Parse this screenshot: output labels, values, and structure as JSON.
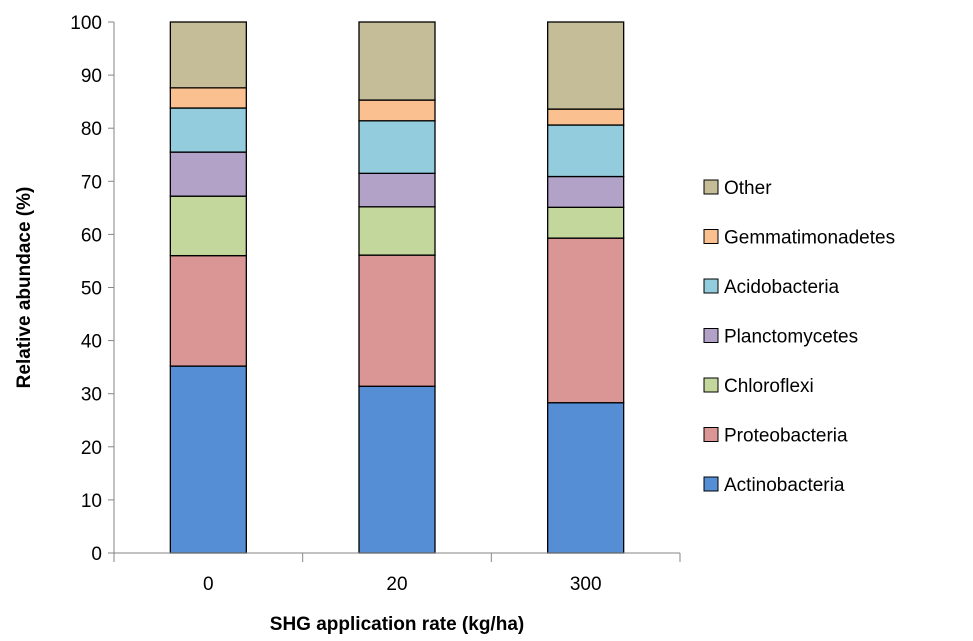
{
  "chart_data": {
    "type": "bar",
    "stacked": true,
    "categories": [
      "0",
      "20",
      "300"
    ],
    "series": [
      {
        "name": "Actinobacteria",
        "color": "#558ED5",
        "values": [
          35.2,
          31.4,
          28.3
        ]
      },
      {
        "name": "Proteobacteria",
        "color": "#D99694",
        "values": [
          20.8,
          24.7,
          31.0
        ]
      },
      {
        "name": "Chloroflexi",
        "color": "#C3D69B",
        "values": [
          11.2,
          9.1,
          5.8
        ]
      },
      {
        "name": "Planctomycetes",
        "color": "#B3A2C7",
        "values": [
          8.3,
          6.3,
          5.8
        ]
      },
      {
        "name": "Acidobacteria",
        "color": "#93CDDD",
        "values": [
          8.3,
          9.9,
          9.7
        ]
      },
      {
        "name": "Gemmatimonadetes",
        "color": "#FAC090",
        "values": [
          3.8,
          3.9,
          3.0
        ]
      },
      {
        "name": "Other",
        "color": "#C4BD97",
        "values": [
          12.4,
          14.7,
          16.4
        ]
      }
    ],
    "xlabel": "SHG application rate (kg/ha)",
    "ylabel": "Relative abundace (%)",
    "ylim": [
      0,
      100
    ],
    "yticks": [
      0,
      10,
      20,
      30,
      40,
      50,
      60,
      70,
      80,
      90,
      100
    ],
    "grid": false,
    "legend_position": "right"
  }
}
